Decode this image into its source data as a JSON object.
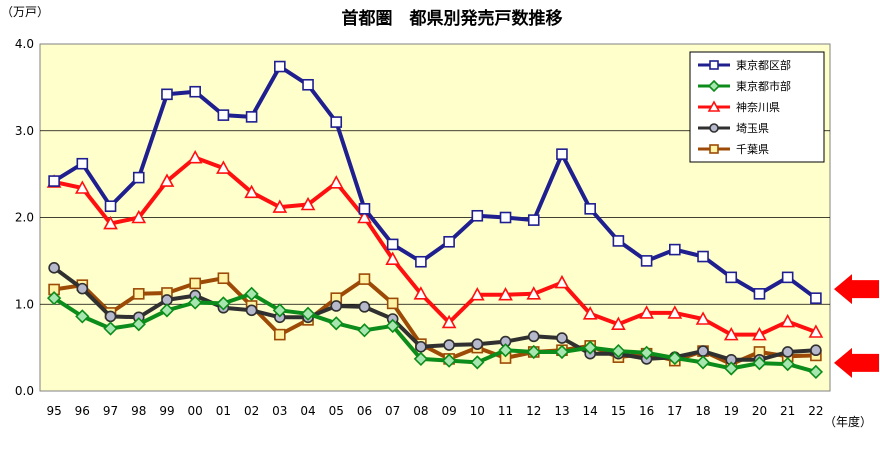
{
  "chart_data": {
    "type": "line",
    "title": "首都圏　都県別発売戸数推移",
    "ylabel": "（万戸）",
    "xlabel": "（年度）",
    "ylim": [
      0,
      4
    ],
    "y_ticks": [
      "0.0",
      "1.0",
      "2.0",
      "3.0",
      "4.0"
    ],
    "y_tick_values": [
      0,
      1,
      2,
      3,
      4
    ],
    "categories": [
      "95",
      "96",
      "97",
      "98",
      "99",
      "00",
      "01",
      "02",
      "03",
      "04",
      "05",
      "06",
      "07",
      "08",
      "09",
      "10",
      "11",
      "12",
      "13",
      "14",
      "15",
      "16",
      "17",
      "18",
      "19",
      "20",
      "21",
      "22"
    ],
    "grid": true,
    "legend_position": "top-right",
    "series": [
      {
        "name": "東京都区部",
        "color": "#1f1f8f",
        "marker": "square",
        "marker_fill": "#ffffff",
        "marker_stroke": "#1f1f8f",
        "values": [
          2.42,
          2.62,
          2.13,
          2.46,
          3.42,
          3.45,
          3.18,
          3.16,
          3.74,
          3.53,
          3.1,
          2.1,
          1.69,
          1.49,
          1.72,
          2.02,
          2.0,
          1.97,
          2.73,
          2.1,
          1.73,
          1.5,
          1.63,
          1.55,
          1.31,
          1.12,
          1.31,
          1.07
        ]
      },
      {
        "name": "東京都市部",
        "color": "#0c8c1a",
        "marker": "diamond",
        "marker_fill": "#a8e6b0",
        "marker_stroke": "#0c8c1a",
        "values": [
          1.07,
          0.86,
          0.72,
          0.77,
          0.93,
          1.02,
          1.01,
          1.12,
          0.93,
          0.89,
          0.78,
          0.7,
          0.75,
          0.37,
          0.35,
          0.33,
          0.47,
          0.45,
          0.45,
          0.5,
          0.46,
          0.44,
          0.38,
          0.33,
          0.26,
          0.32,
          0.31,
          0.22
        ]
      },
      {
        "name": "神奈川県",
        "color": "#ff1010",
        "marker": "triangle",
        "marker_fill": "#ffffff",
        "marker_stroke": "#ff1010",
        "values": [
          2.41,
          2.34,
          1.93,
          2.0,
          2.42,
          2.69,
          2.57,
          2.29,
          2.12,
          2.15,
          2.4,
          2.0,
          1.52,
          1.12,
          0.79,
          1.11,
          1.11,
          1.12,
          1.25,
          0.89,
          0.77,
          0.9,
          0.9,
          0.83,
          0.65,
          0.65,
          0.8,
          0.68
        ]
      },
      {
        "name": "埼玉県",
        "color": "#303030",
        "marker": "circle",
        "marker_fill": "#b6b9cc",
        "marker_stroke": "#303030",
        "values": [
          1.42,
          1.18,
          0.86,
          0.85,
          1.05,
          1.1,
          0.96,
          0.93,
          0.85,
          0.85,
          0.98,
          0.97,
          0.83,
          0.51,
          0.53,
          0.54,
          0.57,
          0.63,
          0.61,
          0.43,
          0.43,
          0.37,
          0.39,
          0.46,
          0.36,
          0.36,
          0.45,
          0.47
        ]
      },
      {
        "name": "千葉県",
        "color": "#9c4a06",
        "marker": "square",
        "marker_fill": "#fff3a6",
        "marker_stroke": "#9c4a06",
        "values": [
          1.17,
          1.22,
          0.9,
          1.12,
          1.13,
          1.24,
          1.3,
          0.98,
          0.65,
          0.82,
          1.07,
          1.29,
          1.01,
          0.54,
          0.37,
          0.5,
          0.38,
          0.45,
          0.47,
          0.52,
          0.39,
          0.43,
          0.35,
          0.46,
          0.31,
          0.45,
          0.4,
          0.41
        ]
      }
    ],
    "annotations": [
      {
        "type": "arrow",
        "color": "#ff0000",
        "points_to": "東京都区部"
      },
      {
        "type": "arrow",
        "color": "#ff0000",
        "points_to": "東京都市部"
      }
    ]
  }
}
